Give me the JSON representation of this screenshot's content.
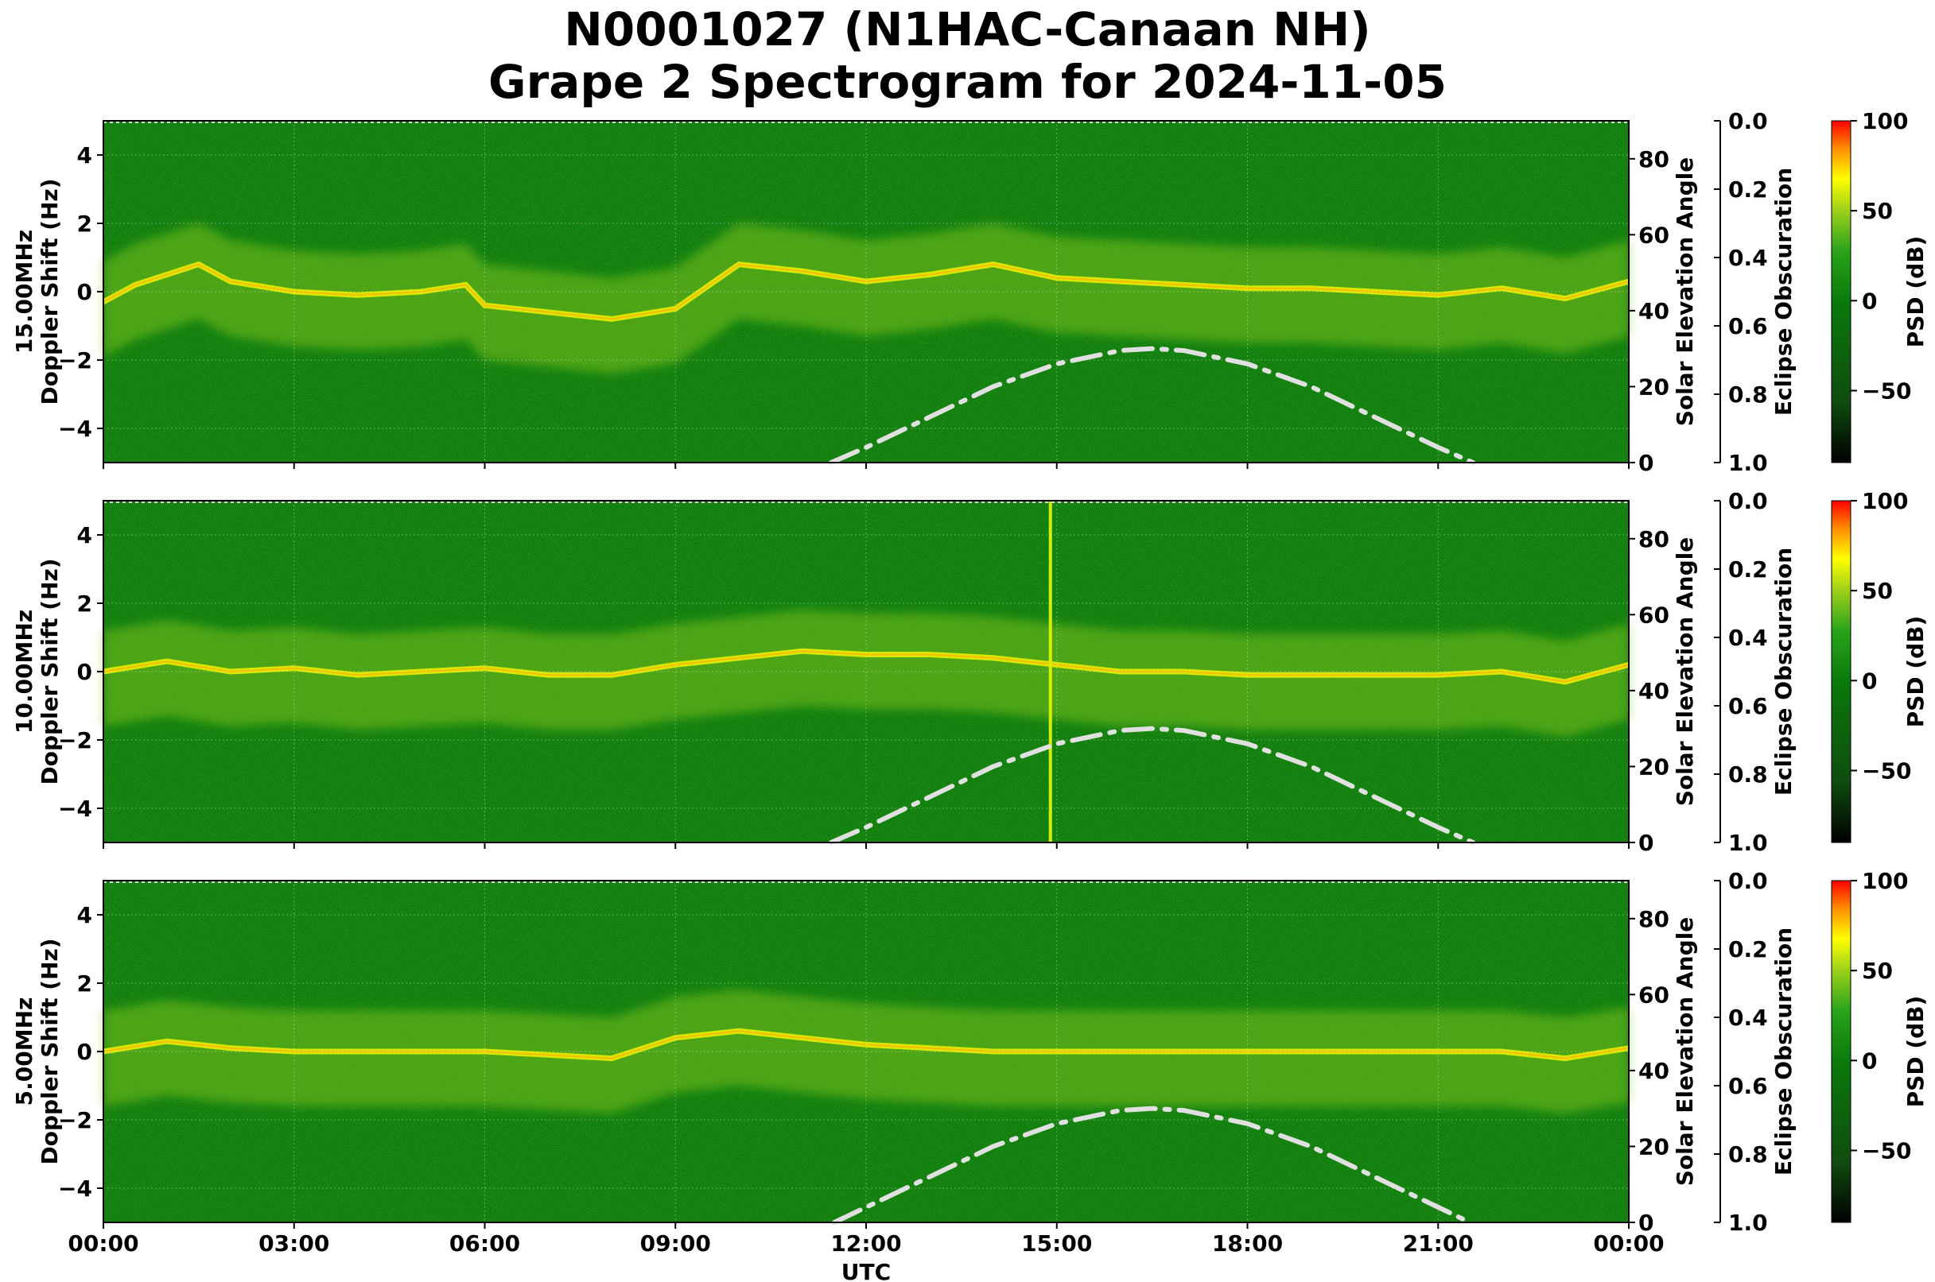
{
  "title": {
    "line1": "N0001027 (N1HAC-Canaan NH)",
    "line2": "Grape 2 Spectrogram for 2024-11-05"
  },
  "colors": {
    "background_green": "#0a7a0a",
    "curve": "#e0e0e0",
    "colormap": [
      "#000000",
      "#0f4d0f",
      "#0a7a0a",
      "#2aa31a",
      "#9fd11a",
      "#ffff00",
      "#ff8c00",
      "#ff0000"
    ]
  },
  "chart_data": [
    {
      "type": "heatmap",
      "panel": "15.00MHz",
      "ylabel": "15.00MHz\nDoppler Shift (Hz)",
      "ylim": [
        -5,
        5
      ],
      "yticks": [
        4,
        2,
        0,
        -2,
        -4
      ],
      "xlim": [
        0,
        24
      ],
      "xticks": [
        "00:00",
        "03:00",
        "06:00",
        "09:00",
        "12:00",
        "15:00",
        "18:00",
        "21:00",
        "00:00"
      ],
      "xlabel": "",
      "right_axis_1": {
        "label": "Solar Elevation Angle",
        "ylim": [
          0,
          90
        ],
        "ticks": [
          0,
          20,
          40,
          60,
          80
        ]
      },
      "right_axis_2": {
        "label": "Eclipse Obscuration",
        "ylim": [
          1.0,
          0.0
        ],
        "ticks": [
          "0.0",
          "0.2",
          "0.4",
          "0.6",
          "0.8",
          "1.0"
        ]
      },
      "colorbar": {
        "label": "PSD (dB)",
        "range": [
          -90,
          100
        ],
        "ticks": [
          "100",
          "50",
          "0",
          "−50"
        ]
      },
      "solar_elevation": {
        "x": [
          11.45,
          12,
          13,
          14,
          15,
          16,
          16.5,
          17,
          18,
          19,
          20,
          21,
          21.55
        ],
        "y": [
          0,
          4,
          12,
          20,
          26,
          29.5,
          30,
          29.5,
          26,
          20,
          12,
          4,
          0
        ]
      },
      "doppler_trace": {
        "x": [
          0,
          0.5,
          1,
          1.5,
          2,
          3,
          4,
          5,
          5.7,
          6,
          7,
          8,
          9,
          10,
          11,
          12,
          13,
          14,
          15,
          16,
          17,
          18,
          19,
          20,
          21,
          22,
          23,
          24
        ],
        "y": [
          -0.3,
          0.2,
          0.5,
          0.8,
          0.3,
          0.0,
          -0.1,
          0.0,
          0.2,
          -0.4,
          -0.6,
          -0.8,
          -0.5,
          0.8,
          0.6,
          0.3,
          0.5,
          0.8,
          0.4,
          0.3,
          0.2,
          0.1,
          0.1,
          0.0,
          -0.1,
          0.1,
          -0.2,
          0.3
        ]
      }
    },
    {
      "type": "heatmap",
      "panel": "10.00MHz",
      "ylabel": "10.00MHz\nDoppler Shift (Hz)",
      "ylim": [
        -5,
        5
      ],
      "yticks": [
        4,
        2,
        0,
        -2,
        -4
      ],
      "xlim": [
        0,
        24
      ],
      "xticks": [
        "00:00",
        "03:00",
        "06:00",
        "09:00",
        "12:00",
        "15:00",
        "18:00",
        "21:00",
        "00:00"
      ],
      "xlabel": "",
      "right_axis_1": {
        "label": "Solar Elevation Angle",
        "ylim": [
          0,
          90
        ],
        "ticks": [
          0,
          20,
          40,
          60,
          80
        ]
      },
      "right_axis_2": {
        "label": "Eclipse Obscuration",
        "ylim": [
          1.0,
          0.0
        ],
        "ticks": [
          "0.0",
          "0.2",
          "0.4",
          "0.6",
          "0.8",
          "1.0"
        ]
      },
      "colorbar": {
        "label": "PSD (dB)",
        "range": [
          -90,
          100
        ],
        "ticks": [
          "100",
          "50",
          "0",
          "−50"
        ]
      },
      "solar_elevation": {
        "x": [
          11.45,
          12,
          13,
          14,
          15,
          16,
          16.5,
          17,
          18,
          19,
          20,
          21,
          21.55
        ],
        "y": [
          0,
          4,
          12,
          20,
          26,
          29.5,
          30,
          29.5,
          26,
          20,
          12,
          4,
          0
        ]
      },
      "doppler_trace": {
        "x": [
          0,
          1,
          2,
          3,
          4,
          5,
          6,
          7,
          8,
          9,
          10,
          11,
          12,
          13,
          14,
          15,
          16,
          17,
          18,
          19,
          20,
          21,
          22,
          23,
          24
        ],
        "y": [
          0.0,
          0.3,
          0.0,
          0.1,
          -0.1,
          0.0,
          0.1,
          -0.1,
          -0.1,
          0.2,
          0.4,
          0.6,
          0.5,
          0.5,
          0.4,
          0.2,
          0.0,
          0.0,
          -0.1,
          -0.1,
          -0.1,
          -0.1,
          0.0,
          -0.3,
          0.2
        ]
      },
      "vertical_line_x": 14.9
    },
    {
      "type": "heatmap",
      "panel": "5.00MHz",
      "ylabel": "5.00MHz\nDoppler Shift (Hz)",
      "ylim": [
        -5,
        5
      ],
      "yticks": [
        4,
        2,
        0,
        -2,
        -4
      ],
      "xlim": [
        0,
        24
      ],
      "xticks": [
        "00:00",
        "03:00",
        "06:00",
        "09:00",
        "12:00",
        "15:00",
        "18:00",
        "21:00",
        "00:00"
      ],
      "xlabel": "UTC",
      "right_axis_1": {
        "label": "Solar Elevation Angle",
        "ylim": [
          0,
          90
        ],
        "ticks": [
          0,
          20,
          40,
          60,
          80
        ]
      },
      "right_axis_2": {
        "label": "Eclipse Obscuration",
        "ylim": [
          1.0,
          0.0
        ],
        "ticks": [
          "0.0",
          "0.2",
          "0.4",
          "0.6",
          "0.8",
          "1.0"
        ]
      },
      "colorbar": {
        "label": "PSD (dB)",
        "range": [
          -90,
          100
        ],
        "ticks": [
          "100",
          "50",
          "0",
          "−50"
        ]
      },
      "solar_elevation": {
        "x": [
          11.5,
          12,
          13,
          14,
          15,
          16,
          16.5,
          17,
          18,
          19,
          20,
          21,
          21.5
        ],
        "y": [
          0,
          4,
          12,
          20,
          26,
          29.5,
          30,
          29.5,
          26,
          20,
          12,
          4,
          0
        ]
      },
      "doppler_trace": {
        "x": [
          0,
          1,
          2,
          3,
          4,
          5,
          6,
          7,
          8,
          9,
          10,
          11,
          12,
          13,
          14,
          15,
          16,
          17,
          18,
          19,
          20,
          21,
          22,
          23,
          24
        ],
        "y": [
          0.0,
          0.3,
          0.1,
          0.0,
          0.0,
          0.0,
          0.0,
          -0.1,
          -0.2,
          0.4,
          0.6,
          0.4,
          0.2,
          0.1,
          0.0,
          0.0,
          0.0,
          0.0,
          0.0,
          0.0,
          0.0,
          0.0,
          0.0,
          -0.2,
          0.1
        ]
      }
    }
  ]
}
